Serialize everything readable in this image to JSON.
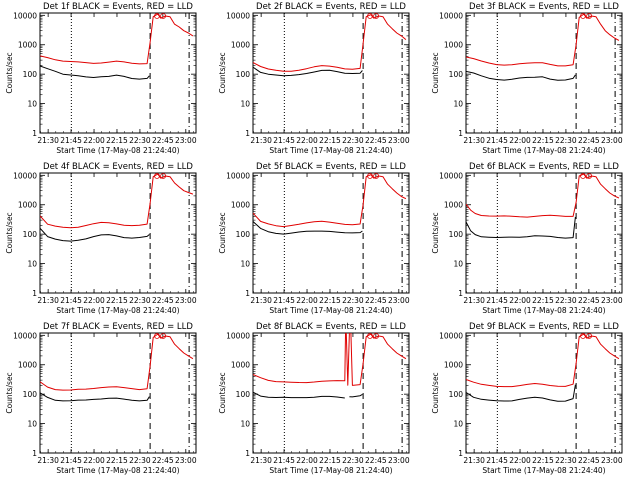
{
  "common": {
    "xlabel": "Start Time (17-May-08 21:24:40)",
    "ylabel": "Counts/sec",
    "yticks": [
      1,
      10,
      100,
      1000,
      10000
    ],
    "ytick_labels": [
      "1",
      "10",
      "100",
      "1000",
      "10000"
    ],
    "xticks": [
      5.33,
      20.33,
      35.33,
      50.33,
      65.33,
      80.33,
      95.33
    ],
    "xtick_labels": [
      "21:30",
      "21:45",
      "22:00",
      "22:15",
      "22:30",
      "22:45",
      "23:00"
    ],
    "xlim": [
      0,
      102
    ],
    "ylim": [
      1,
      12000
    ],
    "colors": {
      "events": "#000000",
      "lld": "#e00000"
    }
  },
  "chart_data": [
    {
      "type": "line",
      "title": "Det 1f BLACK = Events, RED = LLD",
      "yscale": "log",
      "vlines": [
        {
          "x": 20.5,
          "style": "dotted"
        },
        {
          "x": 72.0,
          "style": "dashed"
        },
        {
          "x": 97.5,
          "style": "dashdot"
        }
      ],
      "series": [
        {
          "name": "Events",
          "x": [
            0,
            5,
            10,
            15,
            20,
            25,
            30,
            35,
            40,
            45,
            50,
            55,
            60,
            65,
            70,
            71.5
          ],
          "values": [
            190,
            160,
            130,
            100,
            90,
            85,
            80,
            80,
            85,
            85,
            90,
            80,
            70,
            70,
            75,
            90
          ]
        },
        {
          "name": "LLD",
          "x": [
            0,
            5,
            10,
            15,
            20,
            25,
            30,
            35,
            40,
            45,
            50,
            55,
            60,
            65,
            70,
            72,
            74,
            77,
            79,
            82,
            85,
            88,
            91,
            94,
            97,
            100
          ],
          "values": [
            420,
            380,
            320,
            280,
            260,
            250,
            245,
            240,
            250,
            260,
            270,
            250,
            230,
            230,
            240,
            1200,
            9000,
            11000,
            8000,
            9500,
            9000,
            5000,
            4000,
            3000,
            2500,
            2000
          ]
        }
      ]
    },
    {
      "type": "line",
      "title": "Det 2f BLACK = Events, RED = LLD",
      "yscale": "log",
      "vlines": [
        {
          "x": 20.5,
          "style": "dotted"
        },
        {
          "x": 72.0,
          "style": "dashed"
        },
        {
          "x": 97.5,
          "style": "dashdot"
        }
      ],
      "series": [
        {
          "name": "Events",
          "x": [
            0,
            5,
            10,
            15,
            20,
            25,
            30,
            35,
            40,
            45,
            50,
            55,
            60,
            65,
            70,
            71.5
          ],
          "values": [
            180,
            120,
            100,
            90,
            85,
            90,
            100,
            110,
            120,
            130,
            130,
            120,
            110,
            110,
            110,
            130
          ]
        },
        {
          "name": "LLD",
          "x": [
            0,
            5,
            10,
            15,
            20,
            25,
            30,
            35,
            40,
            45,
            50,
            55,
            60,
            65,
            70,
            72,
            74,
            77,
            79,
            82,
            85,
            88,
            91,
            94,
            97,
            100
          ],
          "values": [
            260,
            190,
            150,
            130,
            120,
            125,
            140,
            160,
            180,
            190,
            180,
            170,
            155,
            155,
            160,
            1100,
            9000,
            10500,
            8000,
            9500,
            9000,
            5000,
            3500,
            2500,
            2000,
            1500
          ]
        }
      ]
    },
    {
      "type": "line",
      "title": "Det 3f BLACK = Events, RED = LLD",
      "yscale": "log",
      "vlines": [
        {
          "x": 20.5,
          "style": "dotted"
        },
        {
          "x": 72.0,
          "style": "dashed"
        },
        {
          "x": 97.5,
          "style": "dashdot"
        }
      ],
      "series": [
        {
          "name": "Events",
          "x": [
            0,
            5,
            10,
            15,
            20,
            25,
            30,
            35,
            40,
            45,
            50,
            55,
            60,
            65,
            70,
            71.5
          ],
          "values": [
            130,
            110,
            85,
            70,
            65,
            65,
            70,
            75,
            75,
            75,
            80,
            70,
            65,
            65,
            70,
            90
          ]
        },
        {
          "name": "LLD",
          "x": [
            0,
            5,
            10,
            15,
            20,
            25,
            30,
            35,
            40,
            45,
            50,
            55,
            60,
            65,
            70,
            72,
            74,
            77,
            79,
            82,
            85,
            88,
            91,
            94,
            97,
            100
          ],
          "values": [
            400,
            340,
            270,
            230,
            210,
            210,
            220,
            230,
            230,
            235,
            240,
            220,
            200,
            195,
            205,
            1000,
            8500,
            11000,
            8000,
            9500,
            9000,
            5000,
            3000,
            2200,
            1700,
            1400
          ]
        }
      ]
    },
    {
      "type": "line",
      "title": "Det 4f BLACK = Events, RED = LLD",
      "yscale": "log",
      "vlines": [
        {
          "x": 20.5,
          "style": "dotted"
        },
        {
          "x": 72.0,
          "style": "dashed"
        },
        {
          "x": 97.5,
          "style": "dashdot"
        }
      ],
      "series": [
        {
          "name": "Events",
          "x": [
            0,
            5,
            10,
            15,
            20,
            25,
            30,
            35,
            40,
            45,
            50,
            55,
            60,
            65,
            70,
            71.5
          ],
          "values": [
            160,
            80,
            65,
            60,
            60,
            65,
            70,
            80,
            90,
            95,
            90,
            80,
            75,
            75,
            80,
            95
          ]
        },
        {
          "name": "LLD",
          "x": [
            0,
            5,
            10,
            15,
            20,
            25,
            30,
            35,
            40,
            45,
            50,
            55,
            60,
            65,
            70,
            72,
            74,
            77,
            79,
            82,
            85,
            88,
            91,
            94,
            97,
            100
          ],
          "values": [
            420,
            210,
            180,
            170,
            170,
            180,
            200,
            220,
            240,
            240,
            230,
            210,
            200,
            195,
            210,
            1100,
            9000,
            11000,
            8000,
            9500,
            9000,
            5500,
            4000,
            3000,
            2600,
            2300
          ]
        }
      ]
    },
    {
      "type": "line",
      "title": "Det 5f BLACK = Events, RED = LLD",
      "yscale": "log",
      "vlines": [
        {
          "x": 20.5,
          "style": "dotted"
        },
        {
          "x": 72.0,
          "style": "dashed"
        },
        {
          "x": 97.5,
          "style": "dashdot"
        }
      ],
      "series": [
        {
          "name": "Events",
          "x": [
            0,
            5,
            10,
            15,
            20,
            25,
            30,
            35,
            40,
            45,
            50,
            55,
            60,
            65,
            70,
            71.5
          ],
          "values": [
            260,
            150,
            120,
            110,
            105,
            110,
            115,
            120,
            125,
            130,
            130,
            120,
            110,
            105,
            110,
            130
          ]
        },
        {
          "name": "LLD",
          "x": [
            0,
            5,
            10,
            15,
            20,
            25,
            30,
            35,
            40,
            45,
            50,
            55,
            60,
            65,
            70,
            72,
            74,
            77,
            79,
            82,
            85,
            88,
            91,
            94,
            97,
            100
          ],
          "values": [
            500,
            260,
            220,
            200,
            190,
            200,
            210,
            230,
            260,
            280,
            270,
            240,
            210,
            200,
            215,
            1000,
            9000,
            10500,
            8000,
            9500,
            9000,
            5000,
            3500,
            2500,
            1900,
            1600
          ]
        }
      ]
    },
    {
      "type": "line",
      "title": "Det 6f BLACK = Events, RED = LLD",
      "yscale": "log",
      "vlines": [
        {
          "x": 20.5,
          "style": "dotted"
        },
        {
          "x": 72.0,
          "style": "dashed"
        },
        {
          "x": 97.5,
          "style": "dashdot"
        }
      ],
      "series": [
        {
          "name": "Events",
          "x": [
            0,
            3,
            6,
            10,
            15,
            20,
            25,
            30,
            35,
            40,
            45,
            50,
            55,
            60,
            65,
            70,
            71.5
          ],
          "values": [
            250,
            130,
            100,
            85,
            80,
            75,
            75,
            78,
            80,
            85,
            90,
            85,
            80,
            75,
            75,
            80,
            400
          ]
        },
        {
          "name": "LLD",
          "x": [
            0,
            3,
            6,
            10,
            15,
            20,
            25,
            30,
            35,
            40,
            45,
            50,
            55,
            60,
            65,
            70,
            72,
            74,
            77,
            79,
            82,
            85,
            88,
            91,
            94,
            97,
            100
          ],
          "values": [
            1000,
            650,
            520,
            450,
            420,
            400,
            400,
            400,
            400,
            400,
            410,
            420,
            420,
            410,
            410,
            420,
            1200,
            9500,
            11000,
            8000,
            9500,
            9000,
            5000,
            3500,
            2500,
            2000,
            1700
          ]
        }
      ]
    },
    {
      "type": "line",
      "title": "Det 7f BLACK = Events, RED = LLD",
      "yscale": "log",
      "vlines": [
        {
          "x": 20.5,
          "style": "dotted"
        },
        {
          "x": 72.0,
          "style": "dashed"
        },
        {
          "x": 97.5,
          "style": "dashdot"
        }
      ],
      "series": [
        {
          "name": "Events",
          "x": [
            0,
            5,
            10,
            15,
            20,
            25,
            30,
            35,
            40,
            45,
            50,
            55,
            60,
            65,
            70,
            71.5
          ],
          "values": [
            110,
            80,
            65,
            60,
            58,
            60,
            62,
            68,
            72,
            75,
            72,
            65,
            60,
            60,
            65,
            85
          ]
        },
        {
          "name": "LLD",
          "x": [
            0,
            5,
            10,
            15,
            20,
            25,
            30,
            35,
            40,
            45,
            50,
            55,
            60,
            65,
            70,
            72,
            74,
            77,
            79,
            82,
            85,
            88,
            91,
            94,
            97,
            100
          ],
          "values": [
            260,
            180,
            150,
            140,
            135,
            140,
            145,
            160,
            175,
            180,
            175,
            160,
            150,
            145,
            160,
            900,
            8500,
            11000,
            8000,
            9500,
            9000,
            5000,
            3500,
            2500,
            2000,
            1600
          ]
        }
      ]
    },
    {
      "type": "line",
      "title": "Det 8f BLACK = Events, RED = LLD",
      "yscale": "log",
      "vlines": [
        {
          "x": 20.5,
          "style": "dotted"
        },
        {
          "x": 72.0,
          "style": "dashed"
        },
        {
          "x": 97.5,
          "style": "dashdot"
        }
      ],
      "series": [
        {
          "name": "Events",
          "x": [
            0,
            5,
            10,
            15,
            20,
            25,
            30,
            35,
            40,
            45,
            50,
            55,
            60,
            60.2,
            63,
            65,
            70,
            71.5
          ],
          "values": [
            120,
            90,
            80,
            75,
            75,
            75,
            78,
            80,
            80,
            82,
            80,
            78,
            75,
            null,
            85,
            80,
            85,
            95
          ]
        },
        {
          "name": "LLD",
          "x": [
            0,
            5,
            10,
            15,
            20,
            25,
            30,
            35,
            40,
            45,
            50,
            55,
            60,
            60.5,
            61,
            62,
            63,
            64,
            65,
            70,
            72,
            74,
            77,
            79,
            82,
            85,
            88,
            91,
            94,
            97,
            100
          ],
          "values": [
            480,
            380,
            300,
            260,
            250,
            250,
            255,
            260,
            265,
            270,
            270,
            280,
            290,
            12000,
            12000,
            200,
            12000,
            12000,
            200,
            220,
            1100,
            9000,
            11000,
            8000,
            9500,
            9000,
            5000,
            3500,
            2500,
            2000,
            1600
          ]
        }
      ]
    },
    {
      "type": "line",
      "title": "Det 9f BLACK = Events, RED = LLD",
      "yscale": "log",
      "vlines": [
        {
          "x": 20.5,
          "style": "dotted"
        },
        {
          "x": 72.0,
          "style": "dashed"
        },
        {
          "x": 97.5,
          "style": "dashdot"
        }
      ],
      "series": [
        {
          "name": "Events",
          "x": [
            0,
            5,
            10,
            15,
            20,
            25,
            30,
            35,
            40,
            45,
            50,
            55,
            60,
            65,
            70,
            71.5
          ],
          "values": [
            120,
            80,
            65,
            60,
            58,
            60,
            62,
            68,
            72,
            75,
            72,
            65,
            60,
            60,
            70,
            200
          ]
        },
        {
          "name": "LLD",
          "x": [
            0,
            5,
            10,
            15,
            20,
            25,
            30,
            35,
            40,
            45,
            50,
            55,
            60,
            65,
            70,
            72,
            74,
            77,
            79,
            82,
            85,
            88,
            91,
            94,
            97,
            100
          ],
          "values": [
            330,
            260,
            210,
            190,
            180,
            185,
            190,
            200,
            210,
            220,
            210,
            200,
            195,
            190,
            215,
            1100,
            9000,
            11000,
            8000,
            9500,
            9000,
            5000,
            3500,
            2500,
            2000,
            1600
          ]
        }
      ]
    }
  ]
}
